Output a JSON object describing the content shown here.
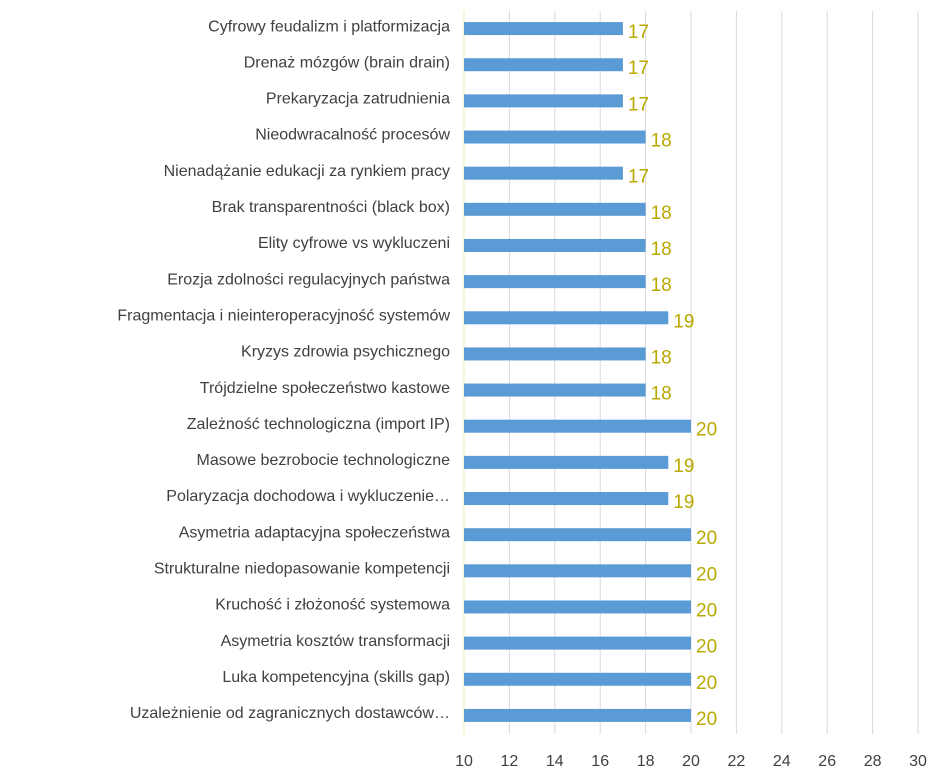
{
  "chart_data": {
    "type": "barh",
    "categories": [
      "Cyfrowy feudalizm i platformizacja",
      "Drenaż mózgów (brain drain)",
      "Prekaryzacja zatrudnienia",
      "Nieodwracalność procesów",
      "Nienadążanie edukacji za rynkiem pracy",
      "Brak transparentności (black box)",
      "Elity cyfrowe vs wykluczeni",
      "Erozja zdolności regulacyjnych państwa",
      "Fragmentacja i nieinteroperacyjność systemów",
      "Kryzys zdrowia psychicznego",
      "Trójdzielne społeczeństwo kastowe",
      "Zależność technologiczna (import IP)",
      "Masowe bezrobocie technologiczne",
      "Polaryzacja dochodowa i wykluczenie…",
      "Asymetria adaptacyjna społeczeństwa",
      "Strukturalne niedopasowanie kompetencji",
      "Kruchość i złożoność systemowa",
      "Asymetria kosztów transformacji",
      "Luka kompetencyjna (skills gap)",
      "Uzależnienie od zagranicznych dostawców…"
    ],
    "values": [
      17,
      17,
      17,
      18,
      17,
      18,
      18,
      18,
      19,
      18,
      18,
      20,
      19,
      19,
      20,
      20,
      20,
      20,
      20,
      20
    ],
    "color": "#5b9bd5",
    "label_color": "#b8a900",
    "xlim": [
      10,
      30
    ],
    "xticks": [
      10,
      12,
      14,
      16,
      18,
      20,
      22,
      24,
      26,
      28,
      30
    ],
    "grid": true
  }
}
